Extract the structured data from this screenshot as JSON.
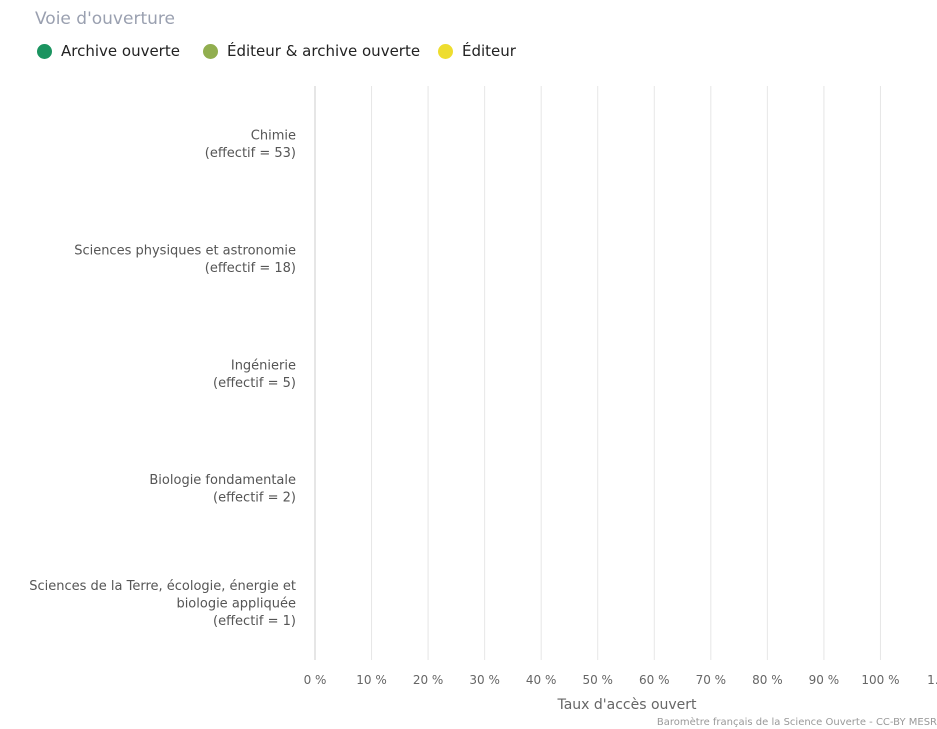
{
  "legend": {
    "title": "Voie d'ouverture",
    "items": [
      {
        "label": "Archive ouverte",
        "color": "#1b9460"
      },
      {
        "label": "Éditeur & archive ouverte",
        "color": "#91ae4f"
      },
      {
        "label": "Éditeur",
        "color": "#eedd2f"
      }
    ]
  },
  "chart_data": {
    "type": "bar",
    "orientation": "horizontal",
    "stacked": true,
    "categories": [
      [
        "Chimie",
        "(effectif = 53)"
      ],
      [
        "Sciences physiques et astronomie",
        "(effectif = 18)"
      ],
      [
        "Ingénierie",
        "(effectif = 5)"
      ],
      [
        "Biologie fondamentale",
        "(effectif = 2)"
      ],
      [
        "Sciences de la Terre, écologie, énergie et",
        "biologie appliquée",
        "(effectif = 1)"
      ]
    ],
    "series": [
      {
        "name": "Archive ouverte",
        "color": "#1b9460",
        "values": [
          0,
          0,
          0,
          0,
          0
        ]
      },
      {
        "name": "Éditeur & archive ouverte",
        "color": "#91ae4f",
        "values": [
          0,
          0,
          0,
          0,
          0
        ]
      },
      {
        "name": "Éditeur",
        "color": "#eedd2f",
        "values": [
          0,
          0,
          0,
          0,
          0
        ]
      }
    ],
    "xlabel": "Taux d'accès ouvert",
    "x_ticks": [
      "0 %",
      "10 %",
      "20 %",
      "30 %",
      "40 %",
      "50 %",
      "60 %",
      "70 %",
      "80 %",
      "90 %",
      "100 %",
      "1…"
    ],
    "xlim": [
      0,
      110
    ],
    "grid": true,
    "legend_position": "top-left"
  },
  "credit": "Baromètre français de la Science Ouverte - CC-BY MESR"
}
